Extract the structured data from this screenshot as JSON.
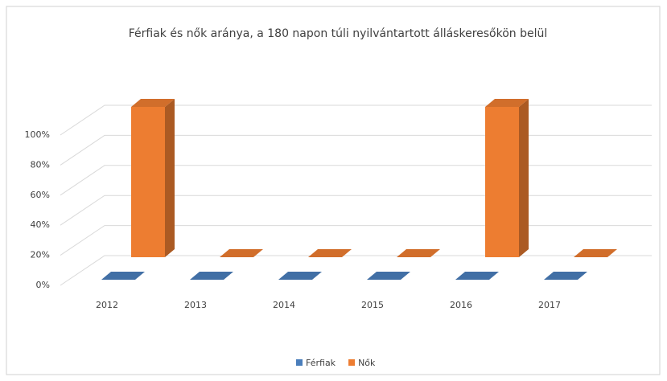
{
  "chart_data": {
    "type": "bar3d",
    "title": "Férfiak és nők aránya, a 180 napon túli nyilvántartott álláskeresőkön belül",
    "categories": [
      "2012",
      "2013",
      "2014",
      "2015",
      "2016",
      "2017"
    ],
    "series": [
      {
        "name": "Férfiak",
        "color": "#4a7ebb",
        "values": [
          0,
          0,
          0,
          0,
          0,
          0
        ]
      },
      {
        "name": "Nők",
        "color": "#ed7d31",
        "values": [
          100,
          0,
          0,
          0,
          100,
          0
        ]
      }
    ],
    "ylim": [
      0,
      100
    ],
    "yticks": [
      {
        "value": 0,
        "label": "0%"
      },
      {
        "value": 20,
        "label": "20%"
      },
      {
        "value": 40,
        "label": "40%"
      },
      {
        "value": 60,
        "label": "60%"
      },
      {
        "value": 80,
        "label": "80%"
      },
      {
        "value": 100,
        "label": "100%"
      }
    ],
    "grid": true,
    "legend": "bottom"
  }
}
